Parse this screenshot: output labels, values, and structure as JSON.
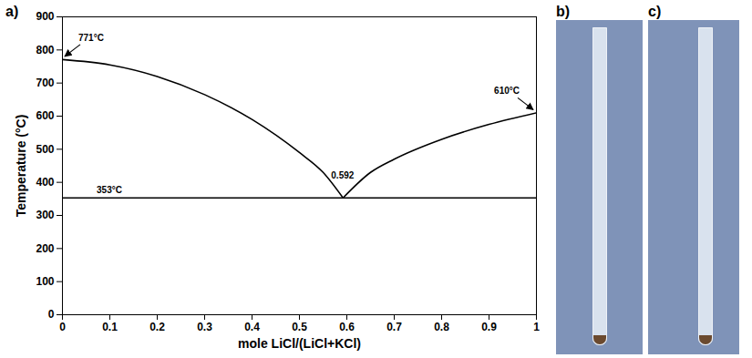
{
  "chart_data": {
    "type": "line",
    "panel_label": "a)",
    "x_label": "mole LiCl/(LiCl+KCl)",
    "y_label": "Temperature (°C)",
    "xlim": [
      0,
      1
    ],
    "xticks": [
      0,
      0.1,
      0.2,
      0.3,
      0.4,
      0.5,
      0.6,
      0.7,
      0.8,
      0.9,
      1
    ],
    "ylim": [
      0,
      900
    ],
    "yticks": [
      0,
      100,
      200,
      300,
      400,
      500,
      600,
      700,
      800,
      900
    ],
    "grid": false,
    "series": [
      {
        "color": "#000000",
        "x": [
          0,
          0.1,
          0.2,
          0.3,
          0.4,
          0.5,
          0.55,
          0.592
        ],
        "values": [
          771,
          755,
          720,
          665,
          590,
          490,
          430,
          353
        ]
      },
      {
        "color": "#000000",
        "x": [
          0.592,
          0.65,
          0.7,
          0.8,
          0.9,
          1
        ],
        "values": [
          353,
          430,
          470,
          530,
          575,
          610
        ]
      },
      {
        "color": "#000000",
        "x": [
          0,
          1
        ],
        "values": [
          353,
          353
        ]
      }
    ],
    "annotations": [
      {
        "text": "771°C",
        "x": 0,
        "y": 771,
        "arrow": true
      },
      {
        "text": "610°C",
        "x": 1,
        "y": 610,
        "arrow": true
      },
      {
        "text": "0.592",
        "x": 0.592,
        "y": 420,
        "arrow": false
      },
      {
        "text": "353°C",
        "x": 0.1,
        "y": 375,
        "arrow": false
      }
    ]
  },
  "photos": [
    {
      "label": "b)"
    },
    {
      "label": "c)"
    }
  ]
}
